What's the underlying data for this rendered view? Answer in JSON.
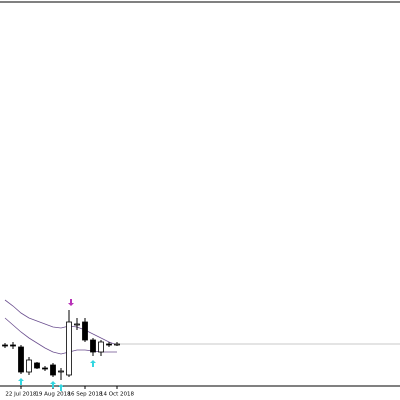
{
  "chart_data": {
    "type": "candlestick",
    "categories": [
      null,
      null,
      "22 Jul 2018",
      null,
      null,
      null,
      "19 Aug 2018",
      null,
      null,
      null,
      "16 Sep 2018",
      null,
      null,
      null,
      "14 Oct 2018"
    ],
    "open": [
      55,
      55,
      53,
      28,
      37,
      32,
      35,
      28,
      25,
      75,
      78,
      60,
      48,
      56,
      56
    ],
    "high": [
      57,
      58,
      55,
      43,
      38,
      34,
      37,
      32,
      90,
      82,
      82,
      62,
      60,
      58,
      58
    ],
    "low": [
      52,
      51,
      26,
      25,
      31,
      29,
      23,
      20,
      23,
      70,
      58,
      44,
      44,
      53,
      54
    ],
    "close": [
      54,
      54,
      28,
      40,
      32,
      31,
      25,
      29,
      78,
      76,
      60,
      48,
      58,
      55,
      56
    ],
    "series": [
      {
        "color": "#6b4f8f",
        "values": [
          100,
          94,
          87,
          82,
          79,
          76,
          73,
          72,
          74,
          73,
          70,
          66,
          62,
          58,
          55
        ]
      },
      {
        "color": "#6b4f8f",
        "values": [
          82,
          75,
          68,
          62,
          57,
          52,
          48,
          46,
          48,
          50,
          50,
          49,
          48,
          48,
          48
        ]
      }
    ],
    "up_arrows": [
      2,
      6,
      7,
      11
    ],
    "up_arrow_color": "#33d6e0",
    "down_arrows": [
      8
    ],
    "down_arrow_color": "#b833b8",
    "current_price": 56,
    "price_line_color": "#c8c8c8",
    "bull_color": "#ffffff",
    "bear_color": "#000000",
    "ylim": [
      14,
      398
    ]
  }
}
